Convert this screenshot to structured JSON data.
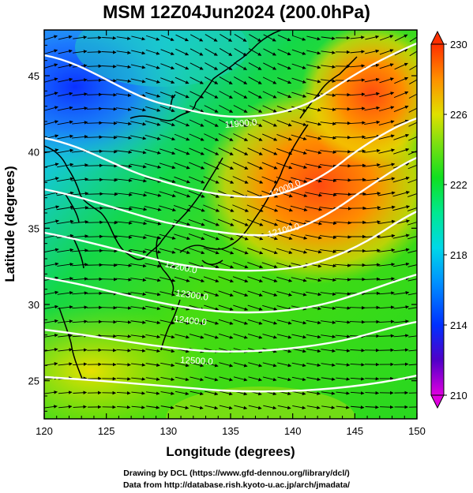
{
  "title": "MSM 12Z04Jun2024 (200.0hPa)",
  "map": {
    "xlabel": "Longitude (degrees)",
    "ylabel": "Latitude  (degrees)",
    "x_ticks": [
      "120",
      "125",
      "130",
      "135",
      "140",
      "145",
      "150"
    ],
    "y_ticks": [
      "45",
      "40",
      "35",
      "30",
      "25"
    ],
    "lon_range": [
      120,
      150
    ],
    "lat_range": [
      22.5,
      48
    ],
    "colorbar": {
      "ticks": [
        "230",
        "226",
        "222",
        "218",
        "214",
        "210"
      ],
      "range": [
        210,
        230
      ],
      "colors": [
        "#e000e0",
        "#5000c8",
        "#0030ff",
        "#0090ff",
        "#00d8e8",
        "#00e890",
        "#10e020",
        "#80e010",
        "#e0e000",
        "#ff9000",
        "#ff3000"
      ]
    },
    "contour_labels": [
      "11900.0",
      "12000.0",
      "12100.0",
      "12200.0",
      "12300.0",
      "12400.0",
      "12500.0"
    ]
  },
  "credits": {
    "line1": "Drawing by DCL (https://www.gfd-dennou.org/library/dcl/)",
    "line2": "Data from http://database.rish.kyoto-u.ac.jp/arch/jmadata/"
  }
}
